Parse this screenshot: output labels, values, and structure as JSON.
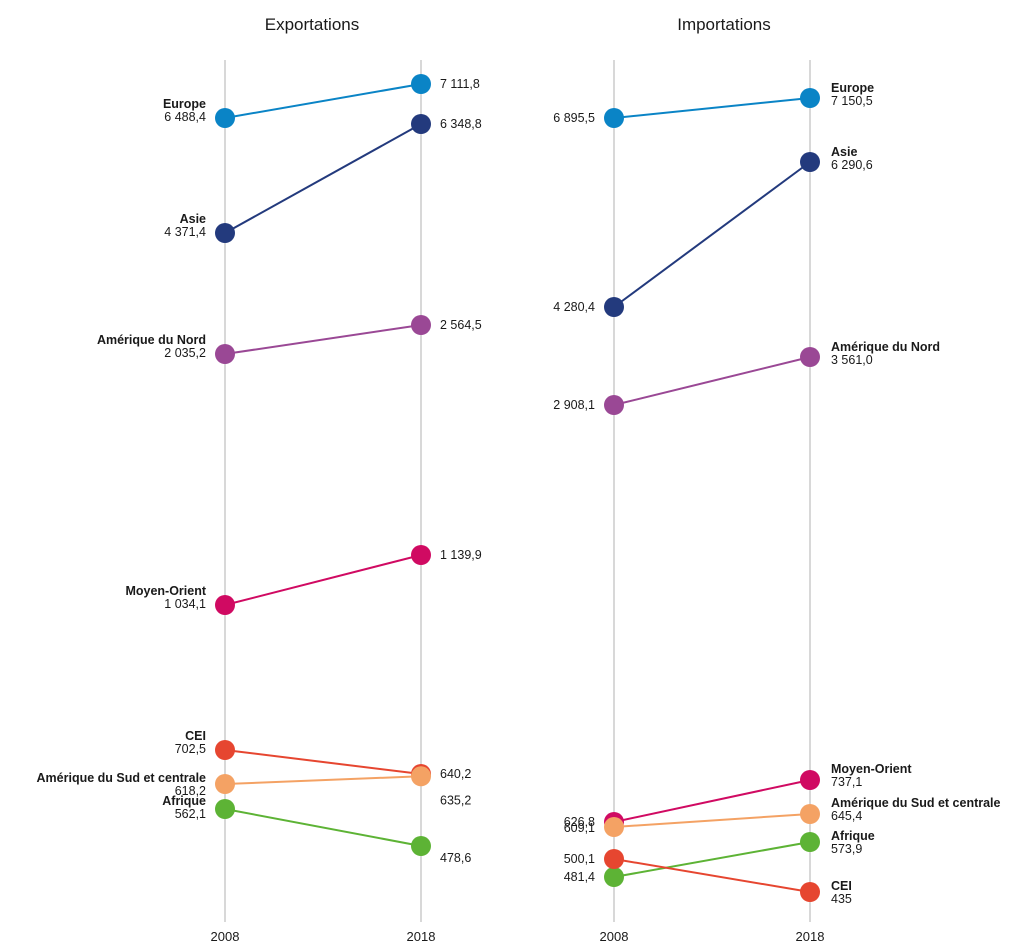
{
  "chart_data": [
    {
      "type": "line",
      "title": "Exportations",
      "categories": [
        "2008",
        "2018"
      ],
      "series": [
        {
          "name": "Europe",
          "values": [
            6488.4,
            7111.8
          ],
          "labels": [
            "6 488,4",
            "7 111,8"
          ],
          "color": "#0a84c6"
        },
        {
          "name": "Asie",
          "values": [
            4371.4,
            6348.8
          ],
          "labels": [
            "4 371,4",
            "6 348,8"
          ],
          "color": "#233a7d"
        },
        {
          "name": "Amérique du Nord",
          "values": [
            2035.2,
            2564.5
          ],
          "labels": [
            "2 035,2",
            "2 564,5"
          ],
          "color": "#9a4895"
        },
        {
          "name": "Moyen-Orient",
          "values": [
            1034.1,
            1139.9
          ],
          "labels": [
            "1 034,1",
            "1 139,9"
          ],
          "color": "#d00a62"
        },
        {
          "name": "CEI",
          "values": [
            702.5,
            640.2
          ],
          "labels": [
            "702,5",
            "640,2"
          ],
          "color": "#e64630"
        },
        {
          "name": "Amérique du Sud et centrale",
          "values": [
            618.2,
            635.2
          ],
          "labels": [
            "618,2",
            "635,2"
          ],
          "color": "#f4a264"
        },
        {
          "name": "Afrique",
          "values": [
            562.1,
            478.6
          ],
          "labels": [
            "562,1",
            "478,6"
          ],
          "color": "#5db335"
        }
      ]
    },
    {
      "type": "line",
      "title": "Importations",
      "categories": [
        "2008",
        "2018"
      ],
      "series": [
        {
          "name": "Europe",
          "values": [
            6895.5,
            7150.5
          ],
          "labels": [
            "6 895,5",
            "7 150,5"
          ],
          "color": "#0a84c6"
        },
        {
          "name": "Asie",
          "values": [
            4280.4,
            6290.6
          ],
          "labels": [
            "4 280,4",
            "6 290,6"
          ],
          "color": "#233a7d"
        },
        {
          "name": "Amérique du Nord",
          "values": [
            2908.1,
            3561.0
          ],
          "labels": [
            "2 908,1",
            "3 561,0"
          ],
          "color": "#9a4895"
        },
        {
          "name": "Moyen-Orient",
          "values": [
            626.8,
            737.1
          ],
          "labels": [
            "626,8",
            "737,1"
          ],
          "color": "#d00a62"
        },
        {
          "name": "Amérique du Sud et centrale",
          "values": [
            609.1,
            645.4
          ],
          "labels": [
            "609,1",
            "645,4"
          ],
          "color": "#f4a264"
        },
        {
          "name": "Afrique",
          "values": [
            481.4,
            573.9
          ],
          "labels": [
            "481,4",
            "573,9"
          ],
          "color": "#5db335"
        },
        {
          "name": "CEI",
          "values": [
            500.1,
            435
          ],
          "labels": [
            "500,1",
            "435"
          ],
          "color": "#e64630"
        }
      ]
    }
  ]
}
